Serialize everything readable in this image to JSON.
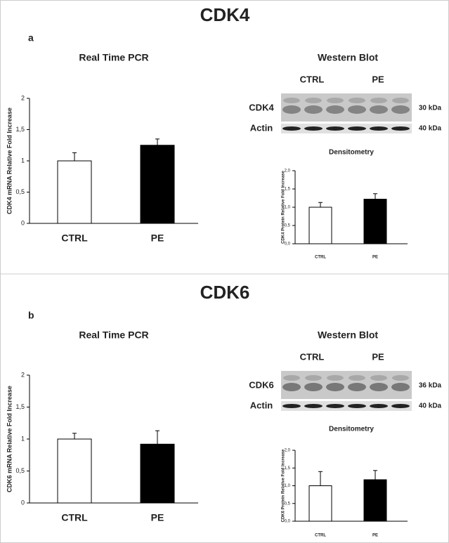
{
  "panels": [
    {
      "title": "CDK4",
      "label": "a",
      "western_blot": {
        "title": "Western Blot",
        "groups": [
          "CTRL",
          "PE"
        ],
        "rows": [
          {
            "name": "CDK4",
            "size": "30 kDa"
          },
          {
            "name": "Actin",
            "size": "40 kDa"
          }
        ]
      }
    },
    {
      "title": "CDK6",
      "label": "b",
      "western_blot": {
        "title": "Western Blot",
        "groups": [
          "CTRL",
          "PE"
        ],
        "rows": [
          {
            "name": "CDK6",
            "size": "36 kDa"
          },
          {
            "name": "Actin",
            "size": "40 kDa"
          }
        ]
      }
    }
  ],
  "chart_data": [
    {
      "type": "bar",
      "title": "Real Time PCR",
      "ylabel": "CDK4 mRNA Relative Fold Increase",
      "categories": [
        "CTRL",
        "PE"
      ],
      "values": [
        1,
        1.25
      ],
      "errors": [
        0.13,
        0.1
      ],
      "colors": [
        "#ffffff",
        "#000000"
      ],
      "ylim": [
        0,
        2
      ],
      "yticks": [
        0,
        {
          "value": 0.5,
          "label": "0,5"
        },
        1,
        {
          "value": 1.5,
          "label": "1,5"
        },
        2
      ]
    },
    {
      "type": "bar",
      "title": "Densitometry",
      "ylabel": "CDK4 Protein Relative Fold Increase",
      "categories": [
        "CTRL",
        "PE"
      ],
      "values": [
        1,
        1.22
      ],
      "errors": [
        0.13,
        0.15
      ],
      "colors": [
        "#ffffff",
        "#000000"
      ],
      "ylim": [
        0,
        2
      ],
      "yticks": [
        {
          "value": 0,
          "label": "0,0"
        },
        {
          "value": 0.5,
          "label": "0,5"
        },
        {
          "value": 1,
          "label": "1,0"
        },
        {
          "value": 1.5,
          "label": "1,5"
        },
        {
          "value": 2,
          "label": "2,0"
        }
      ]
    },
    {
      "type": "bar",
      "title": "Real Time PCR",
      "ylabel": "CDK6 mRNA Relative Fold Increase",
      "categories": [
        "CTRL",
        "PE"
      ],
      "values": [
        1,
        0.92
      ],
      "errors": [
        0.09,
        0.21
      ],
      "colors": [
        "#ffffff",
        "#000000"
      ],
      "ylim": [
        0,
        2
      ],
      "yticks": [
        0,
        {
          "value": 0.5,
          "label": "0,5"
        },
        1,
        {
          "value": 1.5,
          "label": "1,5"
        },
        2
      ]
    },
    {
      "type": "bar",
      "title": "Densitometry",
      "ylabel": "CDK6 Protein Relative Fold Increase",
      "categories": [
        "CTRL",
        "PE"
      ],
      "values": [
        1,
        1.17
      ],
      "errors": [
        0.4,
        0.26
      ],
      "colors": [
        "#ffffff",
        "#000000"
      ],
      "ylim": [
        0,
        2
      ],
      "yticks": [
        {
          "value": 0,
          "label": "0,0"
        },
        {
          "value": 0.5,
          "label": "0,5"
        },
        {
          "value": 1,
          "label": "1,0"
        },
        {
          "value": 1.5,
          "label": "1,5"
        },
        {
          "value": 2,
          "label": "2,0"
        }
      ]
    }
  ]
}
